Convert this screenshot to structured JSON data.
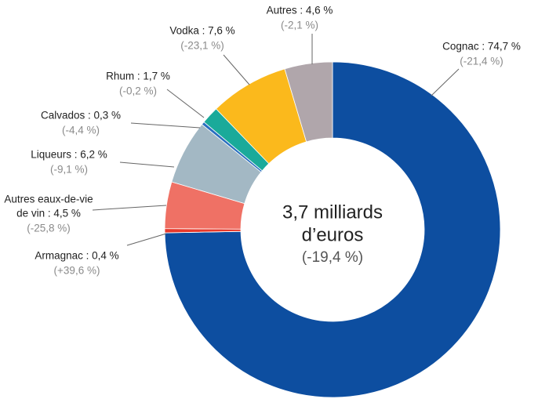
{
  "chart_data": {
    "type": "donut",
    "categories": [
      "Cognac",
      "Armagnac",
      "Autres eaux-de-vie de vin",
      "Liqueurs",
      "Calvados",
      "Rhum",
      "Vodka",
      "Autres"
    ],
    "values": [
      74.7,
      0.4,
      4.5,
      6.2,
      0.3,
      1.7,
      7.6,
      4.6
    ],
    "value_labels": [
      [
        "Cognac : 74,7 %"
      ],
      [
        "Armagnac : 0,4 %"
      ],
      [
        "Autres eaux-de-vie",
        "de vin : 4,5 %"
      ],
      [
        "Liqueurs : 6,2 %"
      ],
      [
        "Calvados : 0,3 %"
      ],
      [
        "Rhum : 1,7 %"
      ],
      [
        "Vodka : 7,6 %"
      ],
      [
        "Autres : 4,6 %"
      ]
    ],
    "changes": [
      "(-21,4 %)",
      "(+39,6 %)",
      "(-25,8 %)",
      "(-9,1 %)",
      "(-4,4 %)",
      "(-0,2 %)",
      "(-23,1 %)",
      "(-2,1 %)"
    ],
    "colors": [
      "#0d4ea0",
      "#e8392b",
      "#ef7165",
      "#a3b8c4",
      "#2a6fc0",
      "#1aaa9a",
      "#fbb91c",
      "#b0a6ab"
    ],
    "center_label": [
      "3,7 milliards",
      "d’euros"
    ],
    "center_change": "(-19,4 %)"
  }
}
